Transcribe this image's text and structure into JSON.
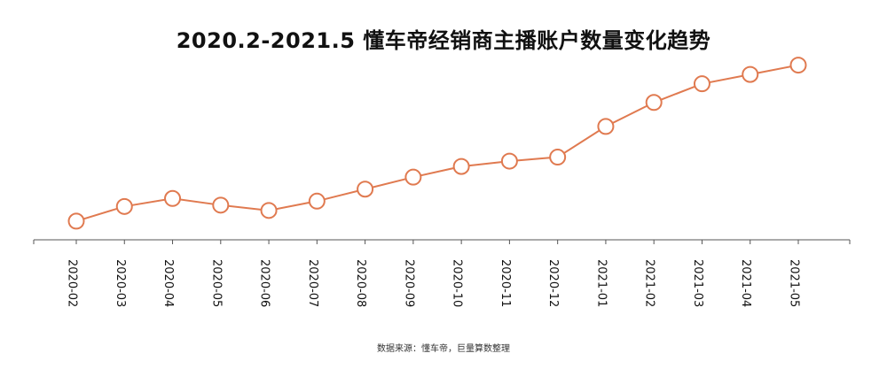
{
  "chart_data": {
    "type": "line",
    "title": "2020.2-2021.5 懂车帝经销商主播账户数量变化趋势",
    "source": "数据来源：懂车帝，巨量算数整理",
    "xlabel": "",
    "ylabel": "",
    "categories": [
      "2020-02",
      "2020-03",
      "2020-04",
      "2020-05",
      "2020-06",
      "2020-07",
      "2020-08",
      "2020-09",
      "2020-10",
      "2020-11",
      "2020-12",
      "2021-01",
      "2021-02",
      "2021-03",
      "2021-04",
      "2021-05"
    ],
    "series": [
      {
        "values": [
          1.4,
          2.5,
          3.1,
          2.6,
          2.2,
          2.9,
          3.8,
          4.7,
          5.5,
          5.9,
          6.2,
          8.5,
          10.3,
          11.7,
          12.4,
          13.1
        ]
      }
    ],
    "ylim": [
      0,
      14
    ],
    "y_axis_visible": false,
    "grid": false,
    "legend": "none",
    "colors": {
      "line": "#e07a50",
      "marker_fill": "#ffffff",
      "axis": "#555555",
      "text": "#111111"
    }
  }
}
